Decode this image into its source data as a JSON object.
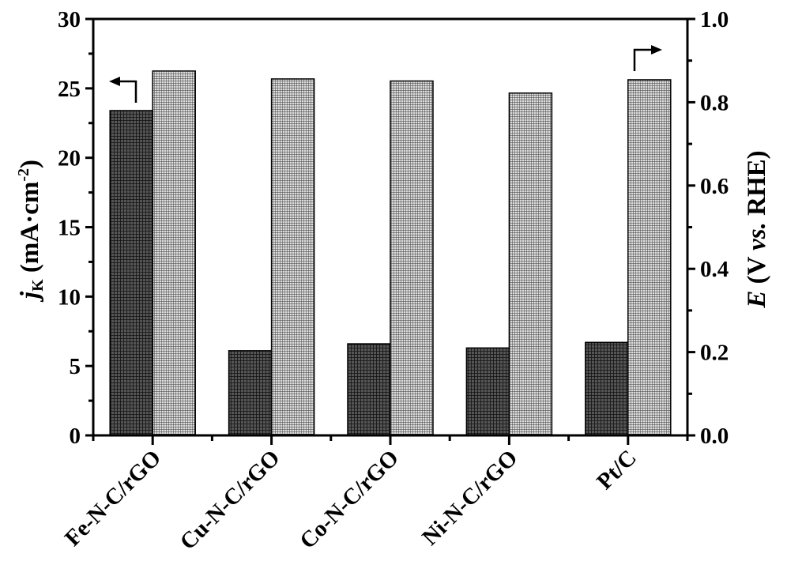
{
  "chart_data": {
    "type": "bar",
    "categories": [
      "Fe-N-C/rGO",
      "Cu-N-C/rGO",
      "Co-N-C/rGO",
      "Ni-N-C/rGO",
      "Pt/C"
    ],
    "series": [
      {
        "name": "jK",
        "axis": "left",
        "values": [
          23.4,
          6.1,
          6.6,
          6.3,
          6.7
        ],
        "color": "#222222"
      },
      {
        "name": "E",
        "axis": "right",
        "values": [
          0.875,
          0.856,
          0.851,
          0.822,
          0.854
        ],
        "color": "#aaaaaa"
      }
    ],
    "ylabel_left": {
      "main": "j",
      "sub": "K",
      "unit": " (mA·cm",
      "sup": "-2",
      "close": ")"
    },
    "ylabel_right": {
      "main": "E",
      "pre": " (V ",
      "vs": "vs.",
      "post": " RHE)"
    },
    "ylim_left": [
      0,
      30
    ],
    "ylim_right": [
      0,
      1.0
    ],
    "yticks_left": [
      "0",
      "5",
      "10",
      "15",
      "20",
      "25",
      "30"
    ],
    "yticks_right": [
      "0.0",
      "0.2",
      "0.4",
      "0.6",
      "0.8",
      "1.0"
    ],
    "grid": false
  }
}
